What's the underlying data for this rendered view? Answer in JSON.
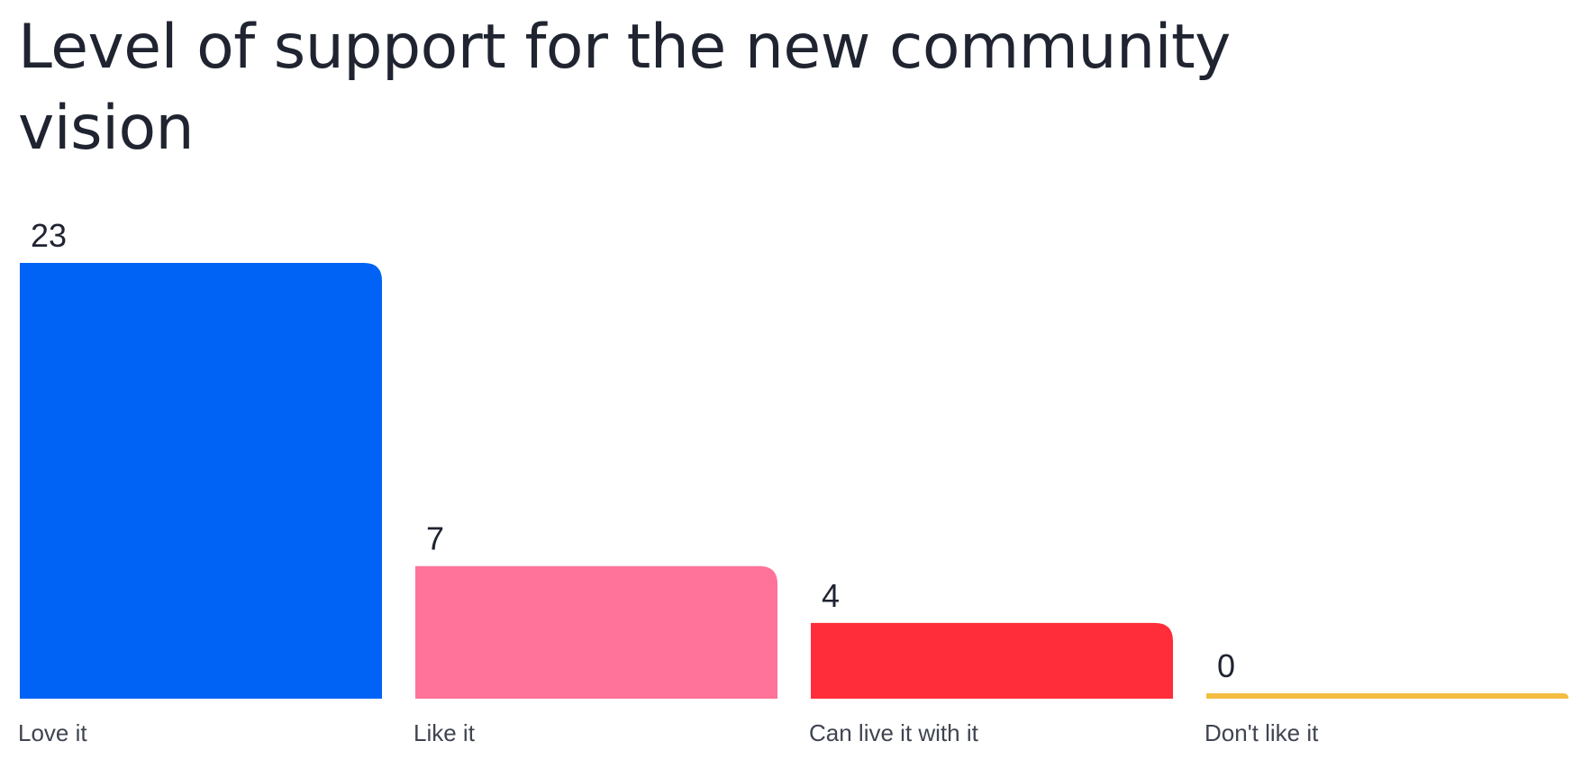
{
  "chart_data": {
    "type": "bar",
    "title": "Level of support for the new community vision",
    "categories": [
      "Love it",
      "Like it",
      "Can live it with it",
      "Don't like it"
    ],
    "values": [
      23,
      7,
      4,
      0
    ],
    "colors": [
      "#0063f5",
      "#ff7299",
      "#ff2d39",
      "#f3bd42"
    ],
    "ylim": [
      0,
      23
    ],
    "grid": false,
    "legend": "none",
    "xlabel": "",
    "ylabel": ""
  }
}
